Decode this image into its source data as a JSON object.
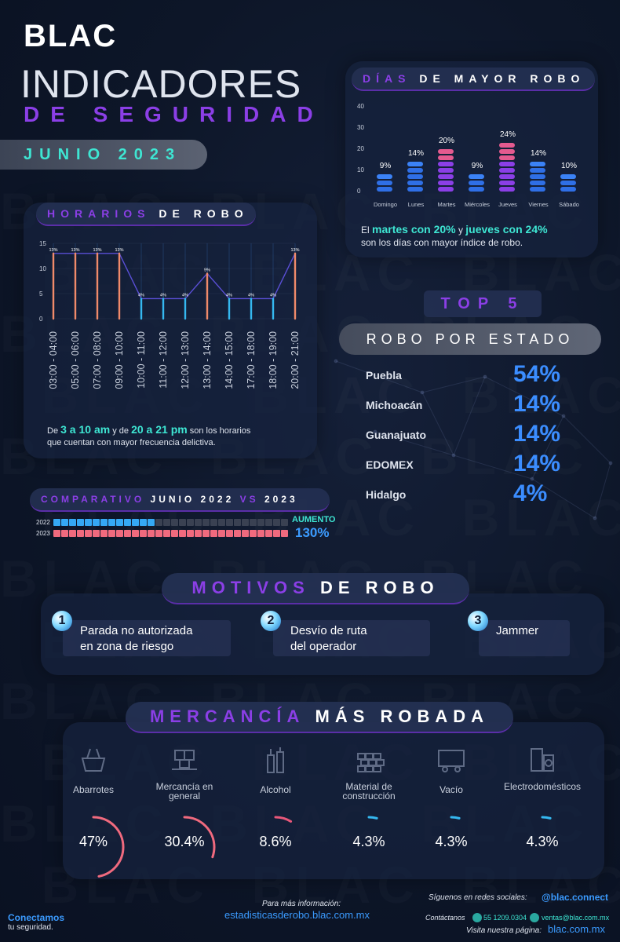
{
  "header": {
    "logo": "BLAC",
    "title_main": "INDICADORES",
    "title_sub": "DE SEGURIDAD",
    "month": "JUNIO 2023"
  },
  "days": {
    "title_a": "DÍAS",
    "title_b": " DE MAYOR ROBO",
    "y_ticks": [
      "40",
      "30",
      "20",
      "10",
      "0"
    ],
    "note_a": "El ",
    "note_hl1": "martes con 20%",
    "note_b": " y ",
    "note_hl2": "jueves con 24%",
    "note_c": "son los días con mayor índice de robo.",
    "bar_colors": [
      "#3b82f6",
      "#3b82f6",
      "#e45a8f",
      "#3b82f6",
      "#e45a8f",
      "#3b82f6",
      "#3b82f6"
    ]
  },
  "chart_data": [
    {
      "type": "bar",
      "title": "DÍAS DE MAYOR ROBO",
      "categories": [
        "Domingo",
        "Lunes",
        "Martes",
        "Miércoles",
        "Jueves",
        "Viernes",
        "Sábado"
      ],
      "values": [
        9,
        14,
        20,
        9,
        24,
        14,
        10
      ],
      "value_labels": [
        "9%",
        "14%",
        "20%",
        "9%",
        "24%",
        "14%",
        "10%"
      ],
      "ylim": [
        0,
        40
      ],
      "xlabel": "",
      "ylabel": ""
    },
    {
      "type": "bar",
      "title": "HORARIOS DE ROBO",
      "categories": [
        "03:00 - 04:00",
        "05:00 - 06:00",
        "07:00 - 08:00",
        "09:00 - 10:00",
        "10:00 - 11:00",
        "11:00 - 12:00",
        "12:00 - 13:00",
        "13:00 - 14:00",
        "14:00 - 15:00",
        "17:00 - 18:00",
        "18:00 - 19:00",
        "20:00 - 21:00"
      ],
      "values": [
        13,
        13,
        13,
        13,
        4,
        4,
        4,
        9,
        4,
        4,
        4,
        13
      ],
      "value_labels": [
        "13%",
        "13%",
        "13%",
        "13%",
        "4%",
        "4%",
        "4%",
        "9%",
        "4%",
        "4%",
        "4%",
        "13%"
      ],
      "y_ticks": [
        "15",
        "10",
        "5",
        "0"
      ],
      "ylim": [
        0,
        15
      ],
      "xlabel": "",
      "ylabel": ""
    },
    {
      "type": "bar",
      "title": "COMPARATIVO JUNIO 2022 VS 2023",
      "categories": [
        "2022",
        "2023"
      ],
      "values": [
        13,
        30
      ],
      "total_segments": 30,
      "xlabel": "",
      "ylabel": ""
    }
  ],
  "hours": {
    "title_a": "HORARIOS",
    "title_b": " DE ROBO",
    "note_a": "De ",
    "note_hl1": "3 a 10 am",
    "note_b": " y de ",
    "note_hl2": "20 a 21 pm",
    "note_c": " son los horarios",
    "note_d": "que cuentan con mayor frecuencia delictiva."
  },
  "top5": {
    "title": "TOP 5",
    "subtitle": "ROBO POR ESTADO",
    "states": [
      {
        "name": "Puebla",
        "pct": "54%"
      },
      {
        "name": "Michoacán",
        "pct": "14%"
      },
      {
        "name": "Guanajuato",
        "pct": "14%"
      },
      {
        "name": "EDOMEX",
        "pct": "14%"
      },
      {
        "name": "Hidalgo",
        "pct": "4%"
      }
    ]
  },
  "comparativo": {
    "title_a": "COMPARATIVO",
    "title_b": " JUNIO 2022 ",
    "title_c": "VS",
    "title_d": " 2023",
    "label_2022": "2022",
    "label_2023": "2023",
    "aumento_label": "AUMENTO",
    "aumento_pct": "130%",
    "color_2022": "#35a9f5",
    "color_2023": "#f06a7e",
    "color_empty": "#3a4152"
  },
  "motivos": {
    "title_a": "MOTIVOS",
    "title_b": " DE ROBO",
    "items": [
      {
        "num": "1",
        "text": "Parada no autorizada\nen zona de riesgo"
      },
      {
        "num": "2",
        "text": "Desvío de ruta\ndel operador"
      },
      {
        "num": "3",
        "text": "Jammer"
      }
    ]
  },
  "mercancia": {
    "title_a": "MERCANCÍA",
    "title_b": " MÁS ROBADA",
    "items": [
      {
        "label": "Abarrotes",
        "pct": "47%",
        "value": 47,
        "icon": "grocery-basket-icon"
      },
      {
        "label": "Mercancía en general",
        "pct": "30.4%",
        "value": 30.4,
        "icon": "boxes-cart-icon"
      },
      {
        "label": "Alcohol",
        "pct": "8.6%",
        "value": 8.6,
        "icon": "bottles-icon"
      },
      {
        "label": "Material de construcción",
        "pct": "4.3%",
        "value": 4.3,
        "icon": "bricks-icon"
      },
      {
        "label": "Vacío",
        "pct": "4.3%",
        "value": 4.3,
        "icon": "empty-trailer-icon"
      },
      {
        "label": "Electrodomésticos",
        "pct": "4.3%",
        "value": 4.3,
        "icon": "appliances-icon"
      }
    ]
  },
  "footer": {
    "slogan_a": "Conectamos",
    "slogan_b": "tu seguridad.",
    "info_label": "Para más información:",
    "info_url": "estadisticasderobo.blac.com.mx",
    "social_label": "Síguenos en redes sociales:",
    "social_handle": "@blac.connect",
    "contact_label": "Contáctanos",
    "phone": "55 1209.0304",
    "email": "ventas@blac.com.mx",
    "visit_label": "Visita nuestra página:",
    "website": "blac.com.mx"
  }
}
